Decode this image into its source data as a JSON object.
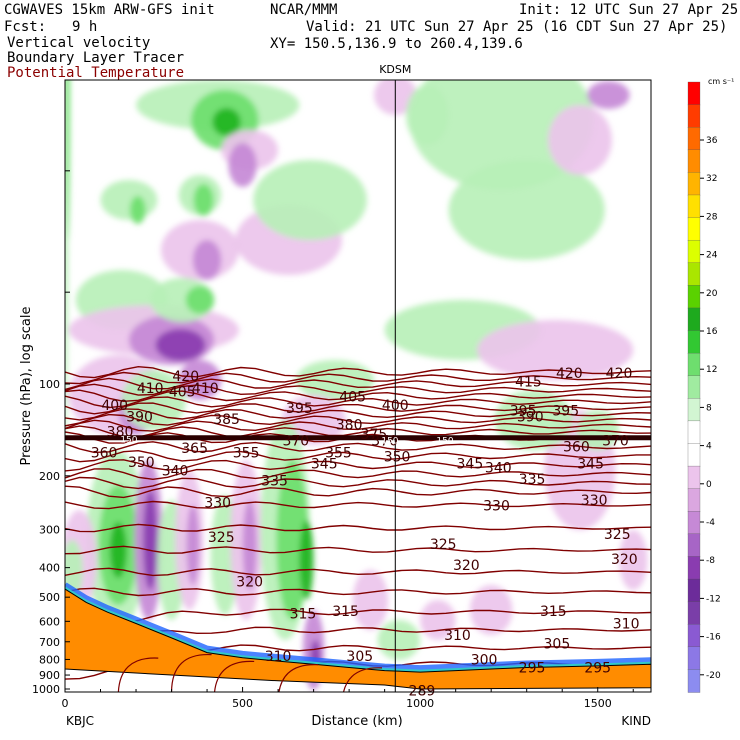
{
  "header": {
    "model": "CGWAVES 15km ARW-GFS init",
    "org": "NCAR/MMM",
    "init": "Init: 12 UTC Sun 27 Apr 25",
    "fcst_label": "Fcst:",
    "fcst_value": "9 h",
    "valid": "Valid: 21 UTC Sun 27 Apr 25 (16 CDT Sun 27 Apr 25)",
    "field1": "Vertical velocity",
    "field2": "Boundary Layer Tracer",
    "field3": "Potential Temperature",
    "xy": "XY= 150.5,136.9 to 260.4,139.6"
  },
  "colors": {
    "theta": "#800000",
    "terrain": "#ff8c00",
    "up_light": "#b8f0b8",
    "up_mid": "#6ede6e",
    "up_strong": "#22b422",
    "down_light": "#ecc4ec",
    "down_mid": "#c689d6",
    "down_strong": "#8a3cb0"
  },
  "chart_data": {
    "type": "contour",
    "x_axis": {
      "label": "Distance (km)",
      "range": [
        0,
        1650
      ],
      "ticks": [
        0,
        500,
        1000,
        1500
      ],
      "tick_labels": [
        "0",
        "500",
        "1000",
        "1500"
      ],
      "left_station": "KBJC",
      "right_station": "KIND"
    },
    "y_axis": {
      "label": "Pressure (hPa), log scale",
      "scale": "log",
      "ticks": [
        100,
        200,
        300,
        400,
        500,
        600,
        700,
        800,
        900,
        1000
      ],
      "tick_labels": [
        "100",
        "200",
        "300",
        "400",
        "500",
        "600",
        "700",
        "800",
        "900",
        "1000"
      ]
    },
    "marker": {
      "label": "KDSM",
      "x": 930
    },
    "colorbar": {
      "unit": "cm s⁻¹",
      "labels": [
        "36",
        "32",
        "28",
        "24",
        "20",
        "16",
        "12",
        "8",
        "4",
        "0",
        "-4",
        "-8",
        "-12",
        "-16",
        "-20"
      ],
      "colors": [
        "#ff0000",
        "#ff3c00",
        "#ff6a00",
        "#ff8c00",
        "#ffb400",
        "#ffe000",
        "#ffff00",
        "#dcff00",
        "#aae600",
        "#5ad200",
        "#1eaa1e",
        "#32c832",
        "#6ede6e",
        "#a0eba0",
        "#d2f5d2",
        "#ffffff",
        "#ffffff",
        "#ecc4ec",
        "#dba7e0",
        "#c689d6",
        "#a765c6",
        "#8a3cb0",
        "#6c2c9a",
        "#7a3ea8",
        "#8a5ad2",
        "#8c78e6",
        "#8c8cf0"
      ]
    },
    "theta_labels": [
      {
        "t": "420",
        "x": 340,
        "p": 94
      },
      {
        "t": "420",
        "x": 1420,
        "p": 92
      },
      {
        "t": "420",
        "x": 1560,
        "p": 92
      },
      {
        "t": "415",
        "x": 1305,
        "p": 98
      },
      {
        "t": "410",
        "x": 240,
        "p": 103
      },
      {
        "t": "410",
        "x": 395,
        "p": 103
      },
      {
        "t": "405",
        "x": 330,
        "p": 106
      },
      {
        "t": "405",
        "x": 810,
        "p": 110
      },
      {
        "t": "400",
        "x": 140,
        "p": 117
      },
      {
        "t": "400",
        "x": 930,
        "p": 117
      },
      {
        "t": "395",
        "x": 660,
        "p": 120
      },
      {
        "t": "395",
        "x": 1290,
        "p": 122
      },
      {
        "t": "395",
        "x": 1410,
        "p": 122
      },
      {
        "t": "390",
        "x": 210,
        "p": 128
      },
      {
        "t": "390",
        "x": 1310,
        "p": 128
      },
      {
        "t": "385",
        "x": 455,
        "p": 130
      },
      {
        "t": "380",
        "x": 155,
        "p": 143
      },
      {
        "t": "380",
        "x": 800,
        "p": 136
      },
      {
        "t": "375",
        "x": 870,
        "p": 146
      },
      {
        "t": "370",
        "x": 900,
        "p": 153
      },
      {
        "t": "370",
        "x": 650,
        "p": 153
      },
      {
        "t": "370",
        "x": 1550,
        "p": 153
      },
      {
        "t": "365",
        "x": 365,
        "p": 162
      },
      {
        "t": "360",
        "x": 1440,
        "p": 160
      },
      {
        "t": "360",
        "x": 110,
        "p": 168
      },
      {
        "t": "355",
        "x": 510,
        "p": 168
      },
      {
        "t": "355",
        "x": 770,
        "p": 168
      },
      {
        "t": "350",
        "x": 215,
        "p": 180
      },
      {
        "t": "350",
        "x": 935,
        "p": 173
      },
      {
        "t": "345",
        "x": 730,
        "p": 182
      },
      {
        "t": "345",
        "x": 1140,
        "p": 182
      },
      {
        "t": "345",
        "x": 1480,
        "p": 182
      },
      {
        "t": "340",
        "x": 310,
        "p": 192
      },
      {
        "t": "340",
        "x": 1220,
        "p": 188
      },
      {
        "t": "335",
        "x": 590,
        "p": 207
      },
      {
        "t": "335",
        "x": 1315,
        "p": 205
      },
      {
        "t": "330",
        "x": 430,
        "p": 245
      },
      {
        "t": "330",
        "x": 1215,
        "p": 250
      },
      {
        "t": "330",
        "x": 1490,
        "p": 240
      },
      {
        "t": "325",
        "x": 440,
        "p": 318
      },
      {
        "t": "325",
        "x": 1065,
        "p": 335
      },
      {
        "t": "325",
        "x": 1555,
        "p": 310
      },
      {
        "t": "320",
        "x": 520,
        "p": 445
      },
      {
        "t": "320",
        "x": 1130,
        "p": 392
      },
      {
        "t": "320",
        "x": 1575,
        "p": 375
      },
      {
        "t": "315",
        "x": 670,
        "p": 565
      },
      {
        "t": "315",
        "x": 790,
        "p": 555
      },
      {
        "t": "315",
        "x": 1375,
        "p": 555
      },
      {
        "t": "310",
        "x": 1105,
        "p": 665
      },
      {
        "t": "310",
        "x": 1580,
        "p": 610
      },
      {
        "t": "310",
        "x": 600,
        "p": 780
      },
      {
        "t": "305",
        "x": 1385,
        "p": 710
      },
      {
        "t": "305",
        "x": 830,
        "p": 780
      },
      {
        "t": "300",
        "x": 1180,
        "p": 800
      },
      {
        "t": "295",
        "x": 1315,
        "p": 850
      },
      {
        "t": "295",
        "x": 1500,
        "p": 850
      },
      {
        "t": "289",
        "x": 1005,
        "p": 1010
      }
    ],
    "tropopause_labels": [
      {
        "t": "150",
        "x": 915,
        "p": 153
      },
      {
        "t": "150",
        "x": 1070,
        "p": 153
      },
      {
        "t": "150",
        "x": 180,
        "p": 152
      }
    ]
  }
}
